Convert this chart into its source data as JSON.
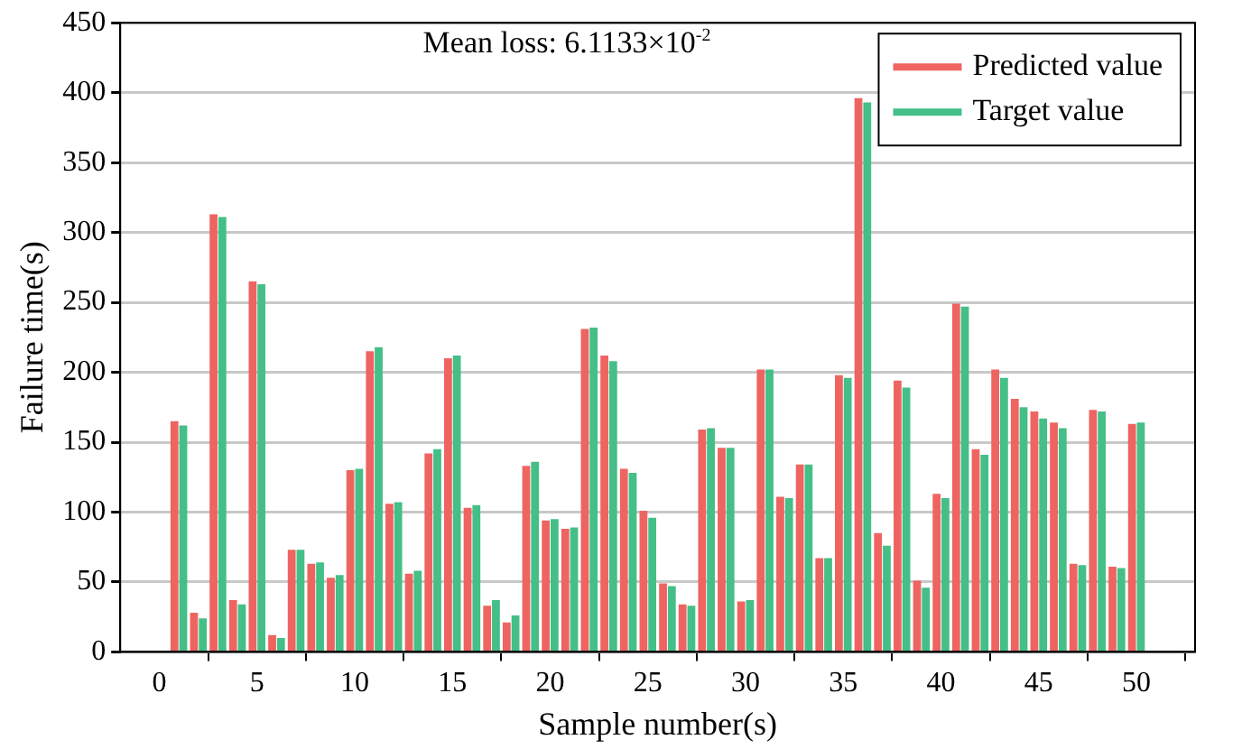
{
  "chart_data": {
    "type": "bar",
    "xlabel": "Sample number(s)",
    "ylabel": "Failure time(s)",
    "annotations": [
      "Mean loss: 6.1133×10$^{-2}$"
    ],
    "x": [
      1,
      2,
      3,
      4,
      5,
      6,
      7,
      8,
      9,
      10,
      11,
      12,
      13,
      14,
      15,
      16,
      17,
      18,
      19,
      20,
      21,
      22,
      23,
      24,
      25,
      26,
      27,
      28,
      29,
      30,
      31,
      32,
      33,
      34,
      35,
      36,
      37,
      38,
      39,
      40,
      41,
      42,
      43,
      44,
      45,
      46,
      47,
      48,
      49,
      50
    ],
    "series": [
      {
        "name": "Predicted value",
        "color": "#ee6461",
        "values": [
          165,
          28,
          313,
          37,
          265,
          12,
          73,
          63,
          53,
          130,
          215,
          106,
          56,
          142,
          210,
          103,
          33,
          21,
          133,
          94,
          88,
          231,
          212,
          131,
          101,
          49,
          34,
          159,
          146,
          36,
          202,
          111,
          134,
          67,
          198,
          396,
          85,
          194,
          51,
          113,
          249,
          145,
          202,
          181,
          172,
          164,
          63,
          173,
          61,
          163
        ]
      },
      {
        "name": "Target value",
        "color": "#44bf87",
        "values": [
          162,
          24,
          311,
          34,
          263,
          10,
          73,
          64,
          55,
          131,
          218,
          107,
          58,
          145,
          212,
          105,
          37,
          26,
          136,
          95,
          89,
          232,
          208,
          128,
          96,
          47,
          33,
          160,
          146,
          37,
          202,
          110,
          134,
          67,
          196,
          393,
          76,
          189,
          46,
          110,
          247,
          141,
          196,
          175,
          167,
          160,
          62,
          172,
          60,
          164
        ]
      }
    ],
    "xlim": [
      -2,
      53
    ],
    "xticks": [
      0,
      5,
      10,
      15,
      20,
      25,
      30,
      35,
      40,
      45,
      50
    ],
    "ylim": [
      0,
      450
    ],
    "yticks": [
      0,
      50,
      100,
      150,
      200,
      250,
      300,
      350,
      400,
      450
    ],
    "grid": "y",
    "legend": "top right"
  }
}
